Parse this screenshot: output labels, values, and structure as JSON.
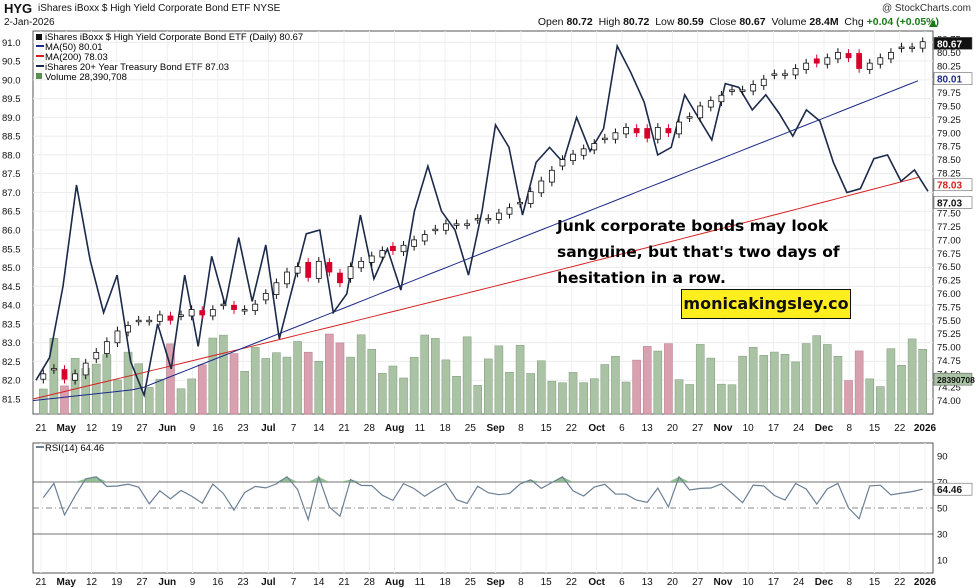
{
  "header": {
    "symbol": "HYG",
    "description": "iShares iBoxx $ High Yield Corporate Bond ETF  NYSE",
    "date": "2-Jan-2026",
    "brand": "@ StockCharts.com",
    "open_label": "Open",
    "open": "80.72",
    "high_label": "High",
    "high": "80.72",
    "low_label": "Low",
    "low": "80.59",
    "close_label": "Close",
    "close": "80.67",
    "volume_label": "Volume",
    "volume": "28.4M",
    "chg_label": "Chg",
    "chg": "+0.04 (+0.05%)",
    "chg_icon": "up-triangle-icon"
  },
  "legend": {
    "main": "iShares iBoxx $ High Yield Corporate Bond ETF (Daily) 80.67",
    "ma50": "MA(50) 80.01",
    "ma200": "MA(200) 78.03",
    "tlt": "iShares 20+ Year Treasury Bond ETF 87.03",
    "volume": "Volume 28,390,708",
    "rsi": "RSI(14) 64.46"
  },
  "annotation": {
    "text_line1": "Junk corporate bonds may look",
    "text_line2": "sanguine, but that's two days of",
    "text_line3": "hesitation in a row.",
    "watermark": "monicakingsley.co"
  },
  "colors": {
    "up": "#111111",
    "down": "#d8002a",
    "ma50": "#1c2a8a",
    "ma200": "#d62020",
    "tlt": "#1b2a4a",
    "vol_up": "#a9c3a4",
    "vol_down": "#d9a0b0",
    "rsi_line": "#6b7f95",
    "rsi_fill": "#7ab07a"
  },
  "chart_data": {
    "type": "line",
    "left_axis_ticks": [
      "91.0",
      "90.5",
      "90.0",
      "89.5",
      "89.0",
      "88.5",
      "88.0",
      "87.5",
      "87.0",
      "86.5",
      "86.0",
      "85.5",
      "85.0",
      "84.5",
      "84.0",
      "83.5",
      "83.0",
      "82.5",
      "82.0",
      "81.5"
    ],
    "right_axis_ticks": [
      "80.75",
      "80.50",
      "80.25",
      "80.00",
      "79.75",
      "79.50",
      "79.25",
      "79.00",
      "78.75",
      "78.50",
      "78.25",
      "78.00",
      "77.75",
      "77.50",
      "77.25",
      "77.00",
      "76.75",
      "76.50",
      "76.25",
      "76.00",
      "75.75",
      "75.50",
      "75.25",
      "75.00",
      "74.75",
      "74.50",
      "74.25",
      "74.00"
    ],
    "right_axis_badges": [
      {
        "label": "80.67",
        "kind": "close"
      },
      {
        "label": "80.01",
        "kind": "ma50"
      },
      {
        "label": "78.03",
        "kind": "ma200"
      },
      {
        "label": "87.03",
        "kind": "tlt"
      },
      {
        "label": "28390708",
        "kind": "volume"
      }
    ],
    "rsi_ticks": [
      "90",
      "70",
      "50",
      "30",
      "10"
    ],
    "rsi_badges": [
      {
        "label": "64.46"
      }
    ],
    "rsi_levels": {
      "overbought": 70,
      "mid": 50,
      "oversold": 30
    },
    "x_labels": [
      "21",
      "May",
      "12",
      "19",
      "27",
      "Jun",
      "9",
      "16",
      "23",
      "Jul",
      "7",
      "14",
      "21",
      "28",
      "Aug",
      "11",
      "18",
      "25",
      "Sep",
      "8",
      "15",
      "22",
      "Oct",
      "6",
      "13",
      "20",
      "27",
      "Nov",
      "10",
      "17",
      "24",
      "Dec",
      "8",
      "15",
      "22",
      "2026"
    ],
    "x_labels_bold": [
      "May",
      "Jun",
      "Jul",
      "Aug",
      "Sep",
      "Oct",
      "Nov",
      "Dec",
      "2026"
    ],
    "ylim_right": [
      73.75,
      80.9
    ],
    "ylim_left": [
      81.1,
      91.3
    ],
    "hyg_close": [
      74.5,
      74.6,
      74.4,
      74.5,
      74.7,
      74.9,
      75.1,
      75.3,
      75.4,
      75.5,
      75.5,
      75.6,
      75.5,
      75.6,
      75.7,
      75.6,
      75.7,
      75.8,
      75.7,
      75.7,
      75.8,
      76.0,
      76.2,
      76.4,
      76.5,
      76.3,
      76.6,
      76.4,
      76.2,
      76.5,
      76.6,
      76.7,
      76.8,
      76.8,
      76.9,
      77.0,
      77.1,
      77.2,
      77.3,
      77.3,
      77.3,
      77.4,
      77.4,
      77.5,
      77.6,
      77.7,
      77.9,
      78.1,
      78.3,
      78.5,
      78.6,
      78.7,
      78.8,
      78.9,
      79.0,
      79.1,
      79.0,
      78.9,
      79.1,
      79.0,
      79.2,
      79.3,
      79.5,
      79.6,
      79.7,
      79.8,
      79.8,
      79.9,
      80.0,
      80.1,
      80.1,
      80.2,
      80.3,
      80.3,
      80.4,
      80.5,
      80.4,
      80.2,
      80.3,
      80.4,
      80.5,
      80.6,
      80.6,
      80.7
    ],
    "tlt": [
      82.0,
      82.6,
      84.5,
      87.2,
      85.2,
      83.8,
      84.8,
      82.5,
      81.6,
      83.5,
      82.3,
      84.8,
      82.9,
      85.3,
      84.0,
      85.8,
      84.1,
      85.6,
      83.1,
      84.5,
      85.9,
      86.0,
      83.8,
      84.3,
      86.4,
      84.7,
      85.5,
      84.4,
      86.5,
      87.7,
      86.5,
      86.0,
      84.8,
      86.5,
      88.8,
      88.2,
      86.4,
      87.8,
      88.2,
      87.8,
      89.0,
      88.1,
      88.7,
      90.9,
      90.2,
      89.4,
      88.0,
      88.2,
      89.6,
      89.0,
      88.4,
      89.9,
      89.8,
      89.2,
      89.6,
      89.1,
      88.5,
      89.2,
      88.9,
      87.8,
      87.0,
      87.1,
      87.9,
      88.0,
      87.3,
      87.6,
      87.03
    ],
    "ma50_range": [
      83.2,
      90.01
    ],
    "ma200_range": [
      81.5,
      87.4
    ],
    "rsi_last": 64.46
  }
}
